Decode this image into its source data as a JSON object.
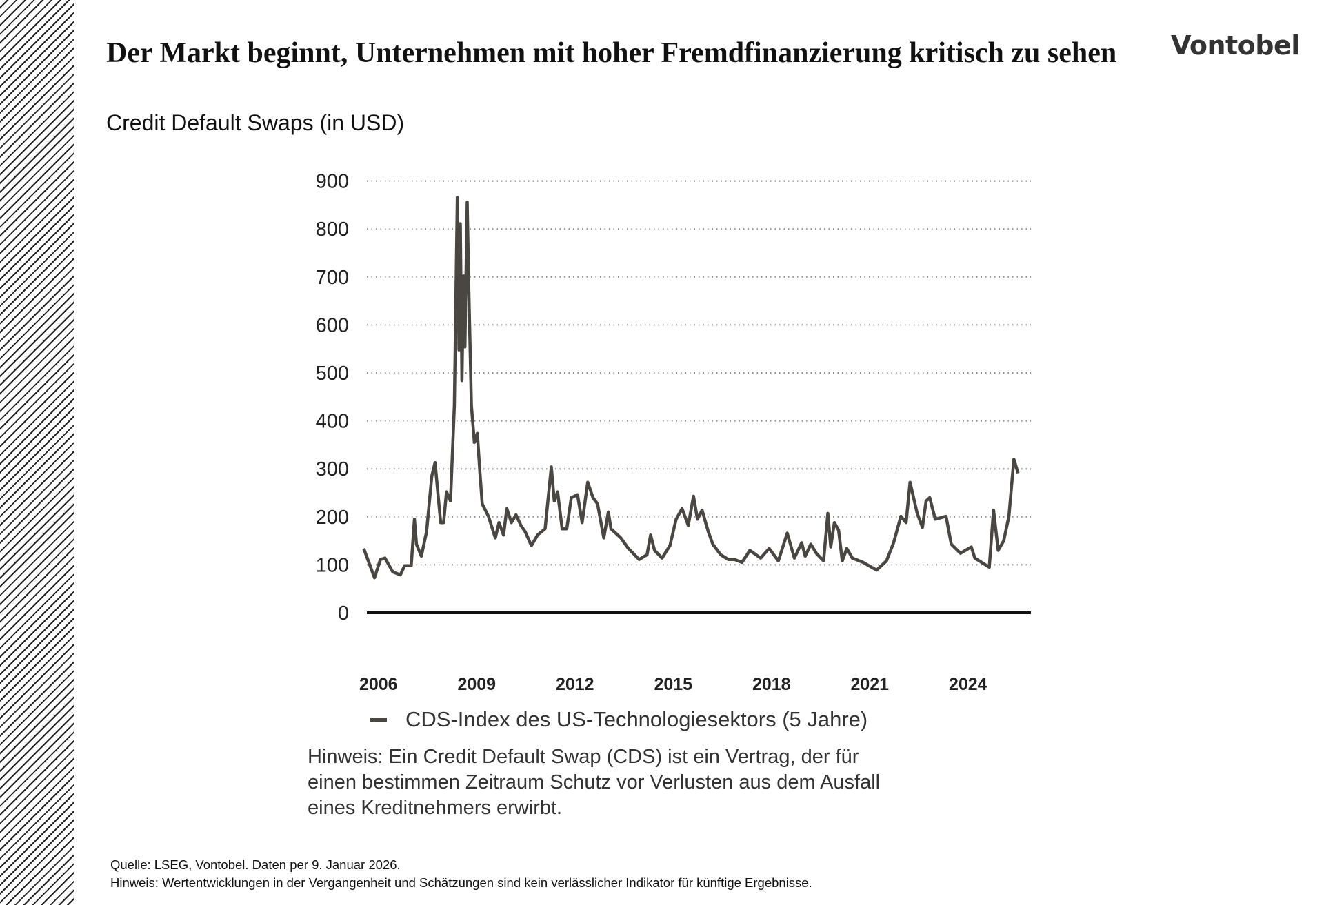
{
  "header": {
    "title": "Der Markt beginnt, Unternehmen mit hoher Fremdfinanzierung kritisch zu sehen",
    "subtitle": "Credit Default Swaps (in USD)",
    "logo": "Vontobel"
  },
  "chart_data": {
    "type": "line",
    "title": "",
    "xlabel": "",
    "ylabel": "",
    "ylim": [
      0,
      900
    ],
    "xlim": [
      2006,
      2026.05
    ],
    "yticks": [
      "0",
      "100",
      "200",
      "300",
      "400",
      "500",
      "600",
      "700",
      "800",
      "900"
    ],
    "xticks": [
      "2006",
      "2009",
      "2012",
      "2015",
      "2018",
      "2021",
      "2024"
    ],
    "grid": "horizontal dotted",
    "legend_position": "bottom",
    "series": [
      {
        "name": "CDS-Index des US-Technologiesektors (5 Jahre)",
        "color": "#4a4641",
        "points": [
          [
            2006.05,
            134
          ],
          [
            2006.38,
            73
          ],
          [
            2006.56,
            111
          ],
          [
            2006.7,
            114
          ],
          [
            2006.94,
            85
          ],
          [
            2007.17,
            79
          ],
          [
            2007.3,
            98
          ],
          [
            2007.5,
            98
          ],
          [
            2007.6,
            195
          ],
          [
            2007.66,
            143
          ],
          [
            2007.81,
            118
          ],
          [
            2007.97,
            169
          ],
          [
            2008.13,
            285
          ],
          [
            2008.23,
            313
          ],
          [
            2008.4,
            188
          ],
          [
            2008.49,
            188
          ],
          [
            2008.58,
            252
          ],
          [
            2008.7,
            233
          ],
          [
            2008.82,
            432
          ],
          [
            2008.91,
            866
          ],
          [
            2008.96,
            548
          ],
          [
            2009.0,
            811
          ],
          [
            2009.05,
            484
          ],
          [
            2009.1,
            702
          ],
          [
            2009.14,
            554
          ],
          [
            2009.21,
            856
          ],
          [
            2009.26,
            676
          ],
          [
            2009.34,
            432
          ],
          [
            2009.43,
            355
          ],
          [
            2009.52,
            374
          ],
          [
            2009.6,
            291
          ],
          [
            2009.67,
            227
          ],
          [
            2009.86,
            201
          ],
          [
            2010.07,
            156
          ],
          [
            2010.18,
            188
          ],
          [
            2010.32,
            162
          ],
          [
            2010.42,
            217
          ],
          [
            2010.56,
            188
          ],
          [
            2010.7,
            204
          ],
          [
            2010.85,
            182
          ],
          [
            2010.98,
            169
          ],
          [
            2011.17,
            140
          ],
          [
            2011.36,
            162
          ],
          [
            2011.59,
            175
          ],
          [
            2011.78,
            304
          ],
          [
            2011.87,
            233
          ],
          [
            2011.97,
            252
          ],
          [
            2012.11,
            175
          ],
          [
            2012.25,
            175
          ],
          [
            2012.39,
            240
          ],
          [
            2012.58,
            246
          ],
          [
            2012.72,
            188
          ],
          [
            2012.89,
            272
          ],
          [
            2013.05,
            240
          ],
          [
            2013.19,
            227
          ],
          [
            2013.38,
            156
          ],
          [
            2013.52,
            210
          ],
          [
            2013.6,
            175
          ],
          [
            2013.9,
            156
          ],
          [
            2014.13,
            134
          ],
          [
            2014.46,
            111
          ],
          [
            2014.7,
            121
          ],
          [
            2014.81,
            162
          ],
          [
            2014.93,
            130
          ],
          [
            2015.16,
            114
          ],
          [
            2015.4,
            140
          ],
          [
            2015.59,
            195
          ],
          [
            2015.77,
            217
          ],
          [
            2015.96,
            182
          ],
          [
            2016.12,
            243
          ],
          [
            2016.24,
            195
          ],
          [
            2016.38,
            214
          ],
          [
            2016.57,
            169
          ],
          [
            2016.71,
            143
          ],
          [
            2016.95,
            121
          ],
          [
            2017.18,
            111
          ],
          [
            2017.37,
            111
          ],
          [
            2017.6,
            105
          ],
          [
            2017.84,
            130
          ],
          [
            2018.17,
            114
          ],
          [
            2018.43,
            134
          ],
          [
            2018.71,
            108
          ],
          [
            2018.98,
            166
          ],
          [
            2019.2,
            114
          ],
          [
            2019.42,
            146
          ],
          [
            2019.53,
            118
          ],
          [
            2019.7,
            143
          ],
          [
            2019.87,
            124
          ],
          [
            2020.09,
            108
          ],
          [
            2020.22,
            207
          ],
          [
            2020.31,
            137
          ],
          [
            2020.42,
            188
          ],
          [
            2020.55,
            172
          ],
          [
            2020.66,
            108
          ],
          [
            2020.8,
            134
          ],
          [
            2020.97,
            114
          ],
          [
            2021.3,
            105
          ],
          [
            2021.71,
            89
          ],
          [
            2022.01,
            108
          ],
          [
            2022.23,
            146
          ],
          [
            2022.45,
            201
          ],
          [
            2022.61,
            188
          ],
          [
            2022.73,
            272
          ],
          [
            2022.95,
            207
          ],
          [
            2023.11,
            178
          ],
          [
            2023.22,
            233
          ],
          [
            2023.33,
            240
          ],
          [
            2023.5,
            195
          ],
          [
            2023.83,
            201
          ],
          [
            2023.99,
            143
          ],
          [
            2024.27,
            124
          ],
          [
            2024.6,
            137
          ],
          [
            2024.71,
            114
          ],
          [
            2025.15,
            95
          ],
          [
            2025.28,
            214
          ],
          [
            2025.42,
            130
          ],
          [
            2025.59,
            150
          ],
          [
            2025.75,
            201
          ],
          [
            2025.9,
            320
          ],
          [
            2026.03,
            291
          ]
        ]
      }
    ]
  },
  "legend": {
    "label": "CDS-Index des US-Technologiesektors (5 Jahre)"
  },
  "note": {
    "lines": [
      "Hinweis: Ein Credit Default Swap (CDS) ist ein Vertrag, der für",
      "einen bestimmen Zeitraum Schutz vor Verlusten aus dem Ausfall",
      "eines Kreditnehmers erwirbt."
    ]
  },
  "footer": {
    "source": "Quelle: LSEG, Vontobel. Daten per 9. Januar 2026.",
    "disclaimer": "Hinweis: Wertentwicklungen in der Vergangenheit und Schätzungen sind kein verlässlicher Indikator für künftige Ergebnisse."
  }
}
